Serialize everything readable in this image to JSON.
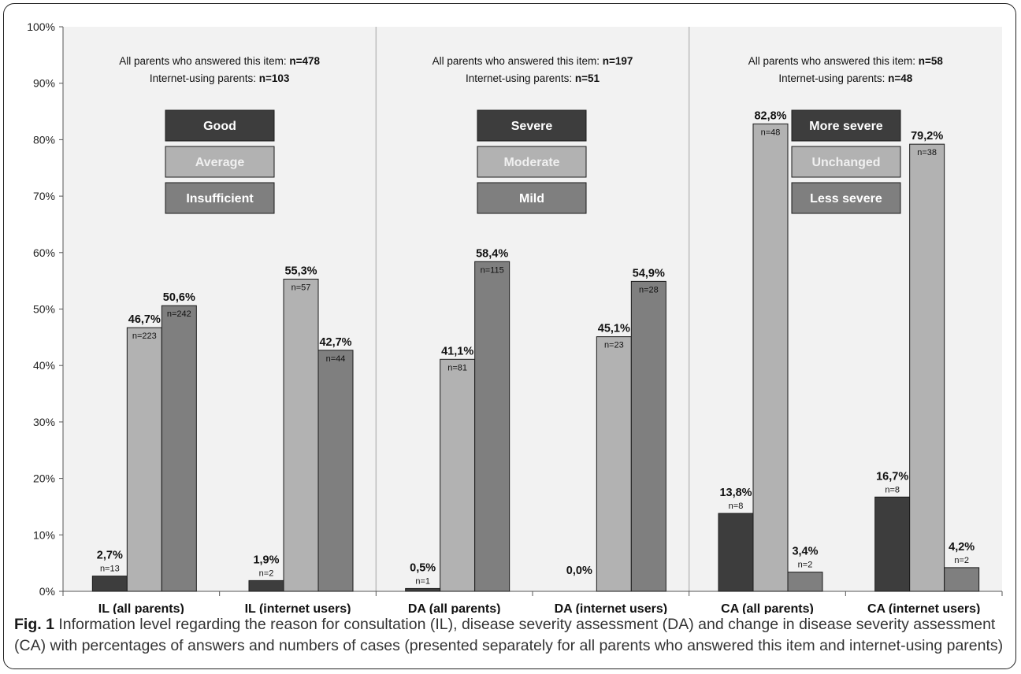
{
  "chart_data": {
    "type": "bar",
    "ylim": [
      0,
      100
    ],
    "y_tick_labels": [
      "0%",
      "10%",
      "20%",
      "30%",
      "40%",
      "50%",
      "60%",
      "70%",
      "80%",
      "90%",
      "100%"
    ],
    "grid": false,
    "categories": [
      "IL (all parents)",
      "IL (internet users)",
      "DA (all parents)",
      "DA (internet users)",
      "CA (all parents)",
      "CA (internet users)"
    ],
    "panels": [
      {
        "line1": "All parents who answered this item: ",
        "line1_n": "n=478",
        "line2": "Internet-using parents: ",
        "line2_n": "n=103",
        "legend": [
          "Good",
          "Average",
          "Insufficient"
        ]
      },
      {
        "line1": "All parents who answered this item: ",
        "line1_n": "n=197",
        "line2": "Internet-using parents: ",
        "line2_n": "n=51",
        "legend": [
          "Severe",
          "Moderate",
          "Mild"
        ]
      },
      {
        "line1": "All parents who answered this item: ",
        "line1_n": "n=58",
        "line2": "Internet-using parents: ",
        "line2_n": "n=48",
        "legend": [
          "More severe",
          "Unchanged",
          "Less severe"
        ]
      }
    ],
    "series_colors": [
      "#3d3d3d",
      "#b2b2b2",
      "#7f7f7f"
    ],
    "groups": [
      {
        "values": [
          2.7,
          46.7,
          50.6
        ],
        "value_labels": [
          "2,7%",
          "46,7%",
          "50,6%"
        ],
        "n_labels": [
          "n=13",
          "n=223",
          "n=242"
        ]
      },
      {
        "values": [
          1.9,
          55.3,
          42.7
        ],
        "value_labels": [
          "1,9%",
          "55,3%",
          "42,7%"
        ],
        "n_labels": [
          "n=2",
          "n=57",
          "n=44"
        ]
      },
      {
        "values": [
          0.5,
          41.1,
          58.4
        ],
        "value_labels": [
          "0,5%",
          "41,1%",
          "58,4%"
        ],
        "n_labels": [
          "n=1",
          "n=81",
          "n=115"
        ]
      },
      {
        "values": [
          0.0,
          45.1,
          54.9
        ],
        "value_labels": [
          "0,0%",
          "45,1%",
          "54,9%"
        ],
        "n_labels": [
          "",
          "n=23",
          "n=28"
        ]
      },
      {
        "values": [
          13.8,
          82.8,
          3.4
        ],
        "value_labels": [
          "13,8%",
          "82,8%",
          "3,4%"
        ],
        "n_labels": [
          "n=8",
          "n=48",
          "n=2"
        ]
      },
      {
        "values": [
          16.7,
          79.2,
          4.2
        ],
        "value_labels": [
          "16,7%",
          "79,2%",
          "4,2%"
        ],
        "n_labels": [
          "n=8",
          "n=38",
          "n=2"
        ]
      }
    ]
  },
  "caption": {
    "label": "Fig. 1",
    "text": " Information level regarding the reason for consultation (IL), disease severity assessment (DA) and change in disease severity assessment (CA) with percentages of answers and numbers of cases (presented separately for all parents who answered this item and internet-using parents)"
  }
}
